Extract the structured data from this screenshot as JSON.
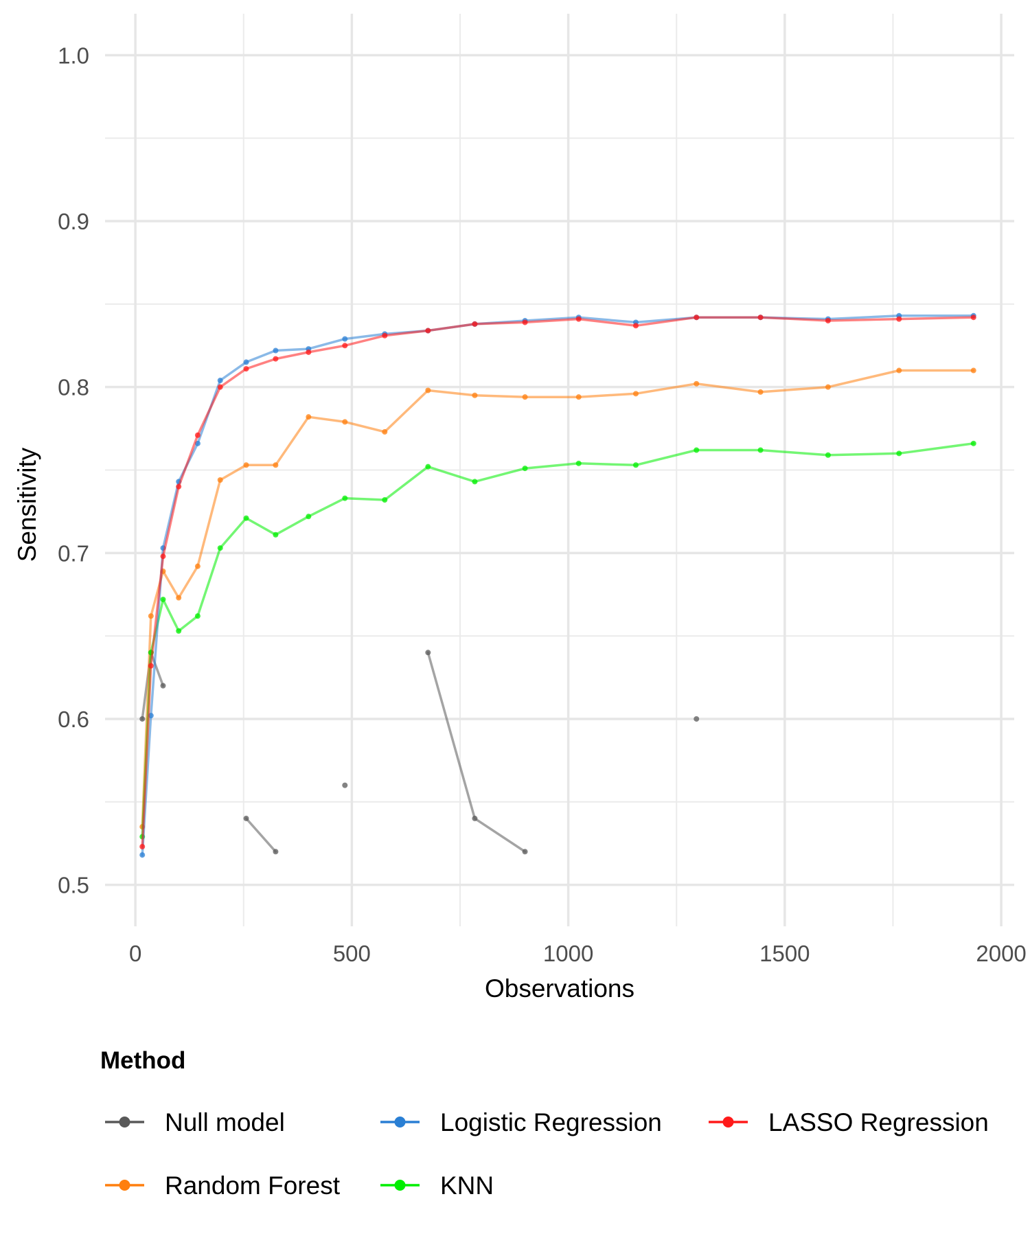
{
  "chart_data": {
    "type": "line",
    "title": "",
    "xlabel": "Observations",
    "ylabel": "Sensitivity",
    "xlim": [
      -70,
      2030
    ],
    "ylim": [
      0.475,
      1.025
    ],
    "x_ticks": [
      0,
      500,
      1000,
      1500,
      2000
    ],
    "x_tick_labels": [
      "0",
      "500",
      "1000",
      "1500",
      "2000"
    ],
    "y_ticks": [
      0.5,
      0.6,
      0.7,
      0.8,
      0.9,
      1.0
    ],
    "y_tick_labels": [
      "0.5",
      "0.6",
      "0.7",
      "0.8",
      "0.9",
      "1.0"
    ],
    "grid": true,
    "legend": {
      "title": "Method",
      "position": "bottom",
      "entries": [
        "Null model",
        "Logistic Regression",
        "LASSO Regression",
        "Random Forest",
        "KNN"
      ]
    },
    "x": [
      16,
      36,
      64,
      100,
      144,
      196,
      256,
      324,
      400,
      484,
      576,
      676,
      784,
      900,
      1024,
      1156,
      1296,
      1444,
      1600,
      1764,
      1936
    ],
    "series": [
      {
        "name": "Null model",
        "color": "#595959",
        "values": [
          0.6,
          0.64,
          0.62,
          null,
          null,
          null,
          0.54,
          0.52,
          null,
          0.56,
          null,
          0.64,
          0.54,
          0.52,
          null,
          null,
          0.6,
          null,
          null,
          null,
          null
        ]
      },
      {
        "name": "Random Forest",
        "color": "#ff7f0e",
        "values": [
          0.535,
          0.662,
          0.689,
          0.673,
          0.692,
          0.744,
          0.753,
          0.753,
          0.782,
          0.779,
          0.773,
          0.798,
          0.795,
          0.794,
          0.794,
          0.796,
          0.802,
          0.797,
          0.8,
          0.81,
          0.81
        ]
      },
      {
        "name": "KNN",
        "color": "#00ee00",
        "values": [
          0.529,
          0.64,
          0.672,
          0.653,
          0.662,
          0.703,
          0.721,
          0.711,
          0.722,
          0.733,
          0.732,
          0.752,
          0.743,
          0.751,
          0.754,
          0.753,
          0.762,
          0.762,
          0.759,
          0.76,
          0.766
        ]
      },
      {
        "name": "Logistic Regression",
        "color": "#2a7fd4",
        "values": [
          0.518,
          0.602,
          0.703,
          0.743,
          0.766,
          0.804,
          0.815,
          0.822,
          0.823,
          0.829,
          0.832,
          0.834,
          0.838,
          0.84,
          0.842,
          0.839,
          0.842,
          0.842,
          0.841,
          0.843,
          0.843
        ]
      },
      {
        "name": "LASSO Regression",
        "color": "#ff1a1a",
        "values": [
          0.523,
          0.632,
          0.698,
          0.74,
          0.771,
          0.8,
          0.811,
          0.817,
          0.821,
          0.825,
          0.831,
          0.834,
          0.838,
          0.839,
          0.841,
          0.837,
          0.842,
          0.842,
          0.84,
          0.841,
          0.842
        ]
      }
    ]
  }
}
